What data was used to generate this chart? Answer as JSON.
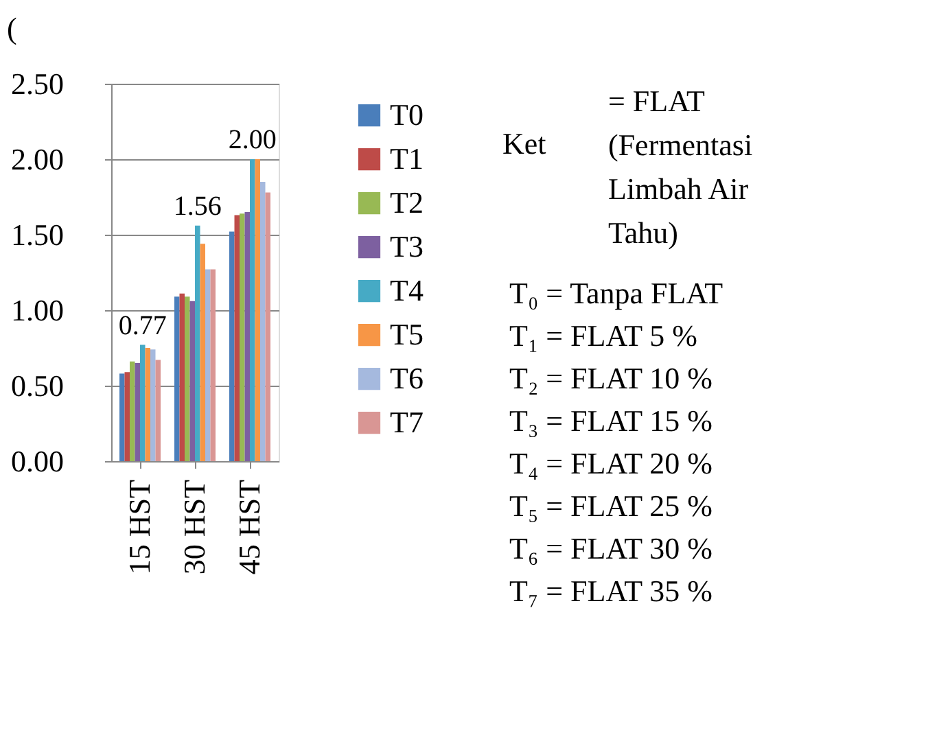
{
  "chart_data": {
    "type": "bar",
    "categories": [
      "15 HST",
      "30 HST",
      "45 HST"
    ],
    "series": [
      {
        "name": "T0",
        "color": "#4a7ebb",
        "values": [
          0.58,
          1.09,
          1.52
        ]
      },
      {
        "name": "T1",
        "color": "#be4b48",
        "values": [
          0.59,
          1.11,
          1.63
        ]
      },
      {
        "name": "T2",
        "color": "#98b954",
        "values": [
          0.66,
          1.09,
          1.64
        ]
      },
      {
        "name": "T3",
        "color": "#7d60a0",
        "values": [
          0.65,
          1.06,
          1.65
        ]
      },
      {
        "name": "T4",
        "color": "#46aac5",
        "values": [
          0.77,
          1.56,
          2.0
        ],
        "value_labels": [
          "0.77",
          "1.56",
          "2.00"
        ]
      },
      {
        "name": "T5",
        "color": "#f79646",
        "values": [
          0.75,
          1.44,
          2.0
        ]
      },
      {
        "name": "T6",
        "color": "#a5b9de",
        "values": [
          0.74,
          1.27,
          1.85
        ]
      },
      {
        "name": "T7",
        "color": "#d99694",
        "values": [
          0.67,
          1.27,
          1.78
        ]
      }
    ],
    "ylim": [
      0,
      2.5
    ],
    "yticks": [
      {
        "value": 0,
        "label": "0.00"
      },
      {
        "value": 0.5,
        "label": "0.50"
      },
      {
        "value": 1,
        "label": "1.00"
      },
      {
        "value": 1.5,
        "label": "1.50"
      },
      {
        "value": 2,
        "label": "2.00"
      },
      {
        "value": 2.5,
        "label": "2.50"
      }
    ],
    "grid": "y",
    "legend": "right",
    "annotations": [
      "(",
      "Ket",
      "= FLAT (Fermentasi Limbah Air Tahu)",
      "T₀ = Tanpa FLAT",
      "T₁ = FLAT 5 %",
      "T₂ = FLAT 10 %",
      "T₃ = FLAT 15 %",
      "T₄ = FLAT 20 %",
      "T₅ = FLAT 25 %",
      "T₆ = FLAT 30 %",
      "T₇ = FLAT 35 %"
    ]
  }
}
